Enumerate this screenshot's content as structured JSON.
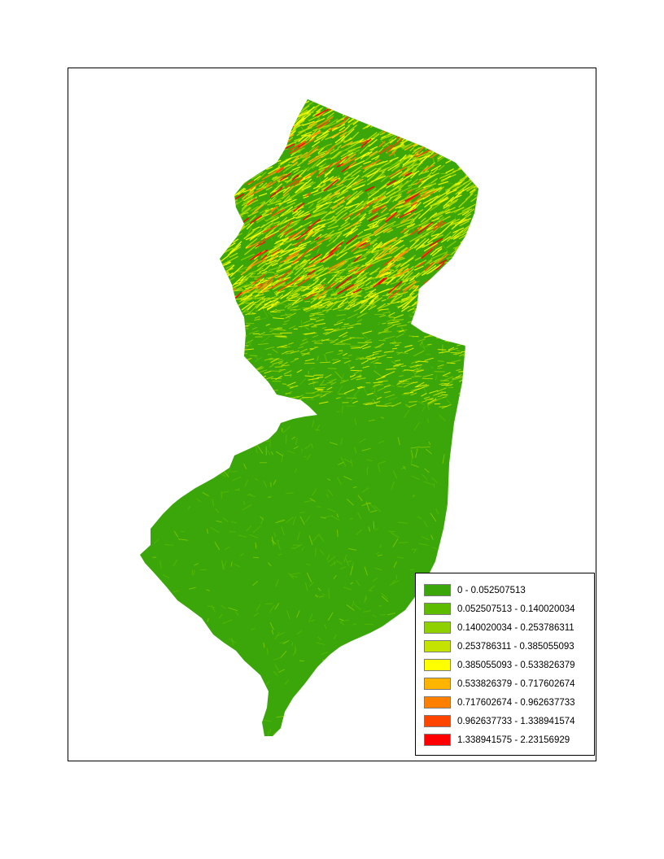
{
  "map": {
    "base_color": "#3aa60a",
    "mid_colors": [
      "#5dbc00",
      "#8fd000",
      "#c4e400",
      "#ffff00"
    ],
    "hot_colors": [
      "#ffb400",
      "#ff8000",
      "#ff4400",
      "#ff0000"
    ]
  },
  "legend": {
    "items": [
      {
        "label": "0 - 0.052507513",
        "color": "#3aa60a"
      },
      {
        "label": "0.052507513 - 0.140020034",
        "color": "#5dbc00"
      },
      {
        "label": "0.140020034 - 0.253786311",
        "color": "#8fd000"
      },
      {
        "label": "0.253786311 - 0.385055093",
        "color": "#c4e400"
      },
      {
        "label": "0.385055093 - 0.533826379",
        "color": "#ffff00"
      },
      {
        "label": "0.533826379 - 0.717602674",
        "color": "#ffb400"
      },
      {
        "label": "0.717602674 - 0.962637733",
        "color": "#ff8000"
      },
      {
        "label": "0.962637733 - 1.338941574",
        "color": "#ff4400"
      },
      {
        "label": "1.338941575 - 2.23156929",
        "color": "#ff0000"
      }
    ]
  }
}
